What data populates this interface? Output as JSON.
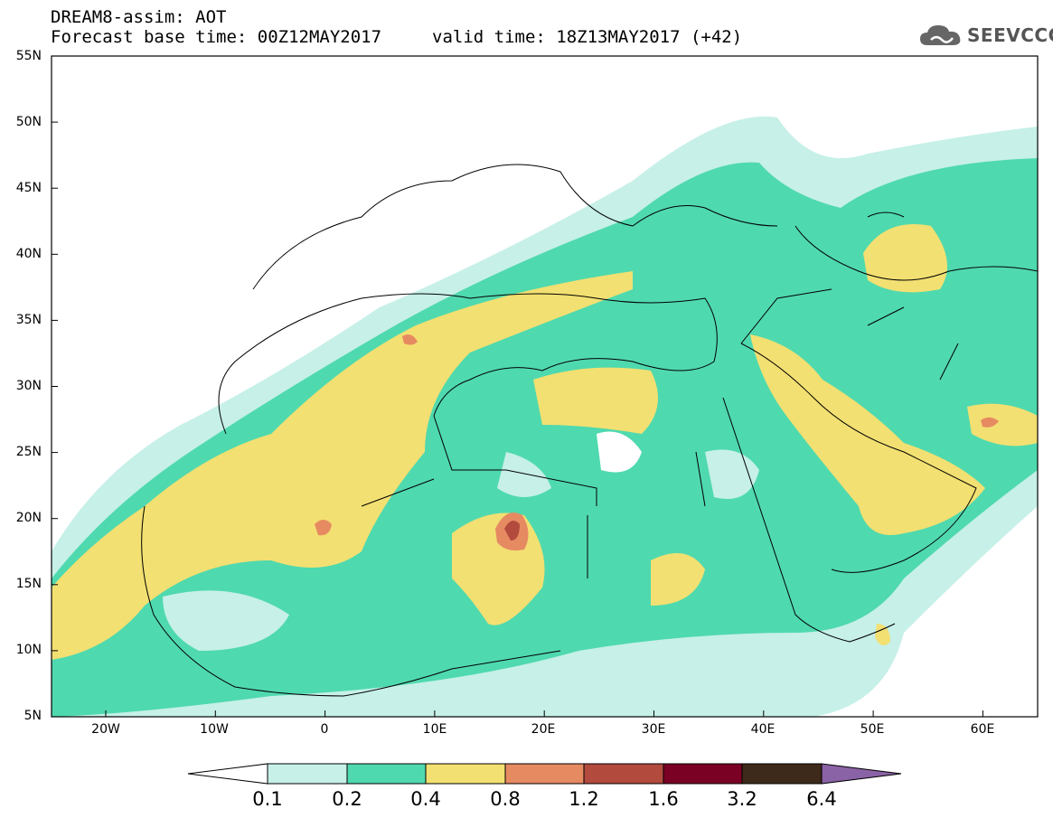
{
  "header": {
    "line1": "DREAM8-assim: AOT",
    "line2": "Forecast base time: 00Z12MAY2017",
    "line3": "valid time: 18Z13MAY2017 (+42)"
  },
  "logo": {
    "text": "SEEVCCC",
    "icon": "cloud-icon"
  },
  "map": {
    "lat_labels": [
      "55N",
      "50N",
      "45N",
      "40N",
      "35N",
      "30N",
      "25N",
      "20N",
      "15N",
      "10N",
      "5N"
    ],
    "lon_labels": [
      "20W",
      "10W",
      "0",
      "10E",
      "20E",
      "30E",
      "40E",
      "50E",
      "60E"
    ]
  },
  "colorbar": {
    "labels": [
      "0.1",
      "0.2",
      "0.4",
      "0.8",
      "1.2",
      "1.6",
      "3.2",
      "6.4"
    ],
    "colors": [
      "#ffffff",
      "#c6f0e8",
      "#4fd9ae",
      "#f2e072",
      "#e68a62",
      "#b24a3e",
      "#7a0024",
      "#3e2a1a",
      "#8a62a6"
    ]
  },
  "legend_colors": {
    "c01": "#c6f0e8",
    "c02": "#4fd9ae",
    "c04": "#f2e072",
    "c08": "#e68a62",
    "c12": "#b24a3e"
  }
}
